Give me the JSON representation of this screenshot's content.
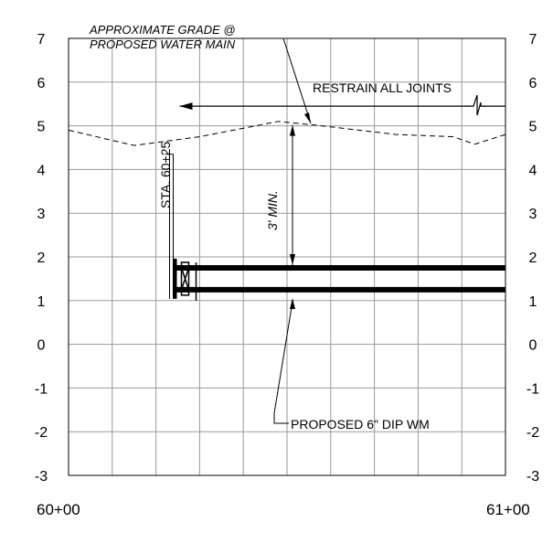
{
  "y_axis": {
    "left_ticks": [
      "7",
      "6",
      "5",
      "4",
      "3",
      "2",
      "1",
      "0",
      "-1",
      "-2",
      "-3"
    ],
    "right_ticks": [
      "7",
      "6",
      "5",
      "4",
      "3",
      "2",
      "1",
      "0",
      "-1",
      "-2",
      "-3"
    ],
    "min": -3,
    "max": 7
  },
  "x_axis": {
    "start_label": "60+00",
    "end_label": "61+00",
    "start_station_ft": 6000,
    "end_station_ft": 6100
  },
  "notes": {
    "grade_line1": "APPROXIMATE GRADE @",
    "grade_line2": "PROPOSED WATER MAIN",
    "restrain": "RESTRAIN ALL JOINTS",
    "station": "STA. 60+25",
    "cover": "3' MIN.",
    "pipe": "PROPOSED  6\" DIP WM"
  },
  "profile": {
    "existing_grade": [
      {
        "sta": 6000,
        "elev": 4.9
      },
      {
        "sta": 6015,
        "elev": 4.55
      },
      {
        "sta": 6030,
        "elev": 4.75
      },
      {
        "sta": 6048,
        "elev": 5.1
      },
      {
        "sta": 6058,
        "elev": 5.0
      },
      {
        "sta": 6075,
        "elev": 4.8
      },
      {
        "sta": 6088,
        "elev": 4.75
      },
      {
        "sta": 6093,
        "elev": 4.58
      },
      {
        "sta": 6100,
        "elev": 4.8
      }
    ],
    "water_main": {
      "start_sta": 6025,
      "end_sta": 6100,
      "top_elev": 1.75,
      "invert_elev": 1.25
    },
    "restrain_line": {
      "start_sta": 6025,
      "end_sta": 6100,
      "elev": 5.45
    },
    "min_cover_ft": 3
  },
  "colors": {
    "line": "#000000",
    "grid": "#9a9a9a"
  }
}
